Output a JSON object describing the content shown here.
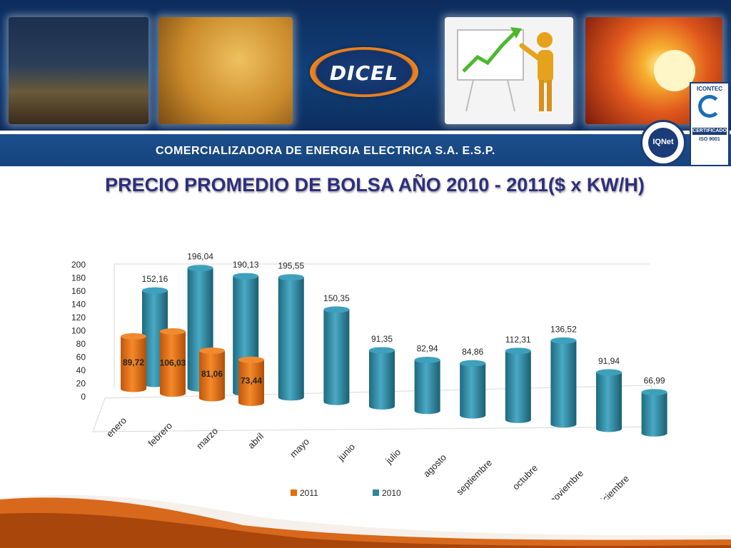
{
  "company_name": "COMERCIALIZADORA DE ENERGIA ELECTRICA S.A. E.S.P.",
  "logo_text": "DICEL",
  "certifications": {
    "iqnet": "IQNet",
    "icontec_name": "ICONTEC",
    "icontec_certified": "CERTIFICADO",
    "icontec_standard": "ISO 9001"
  },
  "colors": {
    "series_2011": "#e46c0a",
    "series_2010": "#31859c",
    "banner": "#12407a",
    "title": "#2e2e7e"
  },
  "chart_data": {
    "type": "bar",
    "title": "PRECIO PROMEDIO DE BOLSA AÑO 2010 - 2011($ x KW/H)",
    "categories": [
      "enero",
      "febrero",
      "marzo",
      "abril",
      "mayo",
      "junio",
      "julio",
      "agosto",
      "septiembre",
      "octubre",
      "noviembre",
      "diciembre"
    ],
    "series": [
      {
        "name": "2011",
        "values": [
          89.72,
          106.03,
          81.06,
          73.44,
          null,
          null,
          null,
          null,
          null,
          null,
          null,
          null
        ],
        "labels": [
          "89,72",
          "106,03",
          "81,06",
          "73,44"
        ]
      },
      {
        "name": "2010",
        "values": [
          152.16,
          196.04,
          190.13,
          195.55,
          150.35,
          91.35,
          82.94,
          84.86,
          112.31,
          136.52,
          91.94,
          66.99
        ],
        "labels": [
          "152,16",
          "196,04",
          "190,13",
          "195,55",
          "150,35",
          "91,35",
          "82,94",
          "84,86",
          "112,31",
          "136,52",
          "91,94",
          "66,99"
        ]
      }
    ],
    "y_ticks": [
      "0",
      "20",
      "40",
      "60",
      "80",
      "100",
      "120",
      "140",
      "160",
      "180",
      "200"
    ],
    "ylim": [
      0,
      200
    ],
    "legend_position": "bottom",
    "grid": false,
    "style": "3d-cylinder"
  }
}
